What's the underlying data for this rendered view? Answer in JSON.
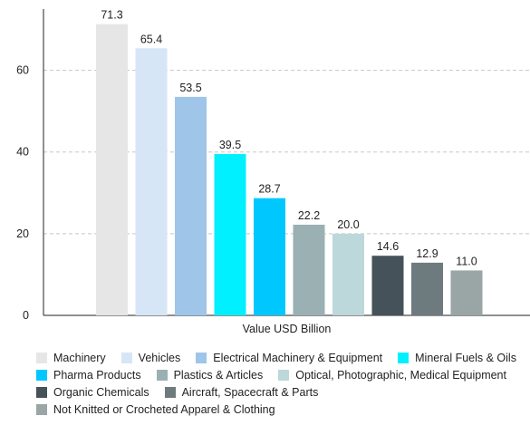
{
  "chart_data": {
    "type": "bar",
    "xlabel": "Value USD Billion",
    "ylim": [
      0,
      75
    ],
    "yticks": [
      0,
      20,
      40,
      60
    ],
    "grid": true,
    "legend_position": "bottom",
    "series": [
      {
        "name": "Machinery",
        "value": 71.3,
        "label": "71.3",
        "color": "#e6e6e6"
      },
      {
        "name": "Vehicles",
        "value": 65.4,
        "label": "65.4",
        "color": "#d6e6f7"
      },
      {
        "name": "Electrical Machinery & Equipment",
        "value": 53.5,
        "label": "53.5",
        "color": "#9fc5e8"
      },
      {
        "name": "Mineral Fuels & Oils",
        "value": 39.5,
        "label": "39.5",
        "color": "#00f0ff"
      },
      {
        "name": "Pharma Products",
        "value": 28.7,
        "label": "28.7",
        "color": "#00c8ff"
      },
      {
        "name": "Plastics & Articles",
        "value": 22.2,
        "label": "22.2",
        "color": "#9bb0b2"
      },
      {
        "name": "Optical, Photographic, Medical Equipment",
        "value": 20.0,
        "label": "20.0",
        "color": "#bcd8da"
      },
      {
        "name": "Organic Chemicals",
        "value": 14.6,
        "label": "14.6",
        "color": "#46525a"
      },
      {
        "name": "Aircraft, Spacecraft & Parts",
        "value": 12.9,
        "label": "12.9",
        "color": "#6e7b7e"
      },
      {
        "name": "Not Knitted or Crocheted Apparel & Clothing",
        "value": 11.0,
        "label": "11.0",
        "color": "#9aa5a6"
      }
    ]
  },
  "legend_rows": [
    [
      0,
      1,
      2,
      3
    ],
    [
      4,
      5,
      6
    ],
    [
      7,
      8
    ],
    [
      9
    ]
  ]
}
